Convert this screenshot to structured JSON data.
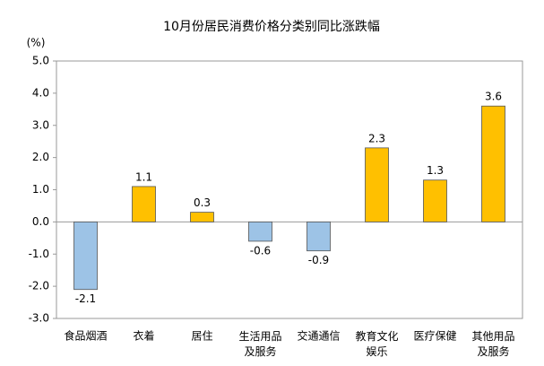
{
  "chart_data": {
    "type": "bar",
    "title": "10月份居民消费价格分类别同比涨跌幅",
    "y_label": "(%)",
    "categories": [
      "食品烟酒",
      "衣着",
      "居住",
      "生活用品及服务",
      "交通通信",
      "教育文化娱乐",
      "医疗保健",
      "其他用品及服务"
    ],
    "values": [
      -2.1,
      1.1,
      0.3,
      -0.6,
      -0.9,
      2.3,
      1.3,
      3.6
    ],
    "positive_color": "#ffc000",
    "negative_color": "#9dc3e6",
    "ylim": [
      -3,
      5
    ],
    "yticks": [
      {
        "value": 5,
        "label": "5.0"
      },
      {
        "value": 4,
        "label": "4.0"
      },
      {
        "value": 3,
        "label": "3.0"
      },
      {
        "value": 2,
        "label": "2.0"
      },
      {
        "value": 1,
        "label": "1.0"
      },
      {
        "value": 0,
        "label": "0.0"
      },
      {
        "value": -1,
        "label": "-1.0"
      },
      {
        "value": -2,
        "label": "-2.0"
      },
      {
        "value": -3,
        "label": "-3.0"
      }
    ],
    "grid": false
  }
}
